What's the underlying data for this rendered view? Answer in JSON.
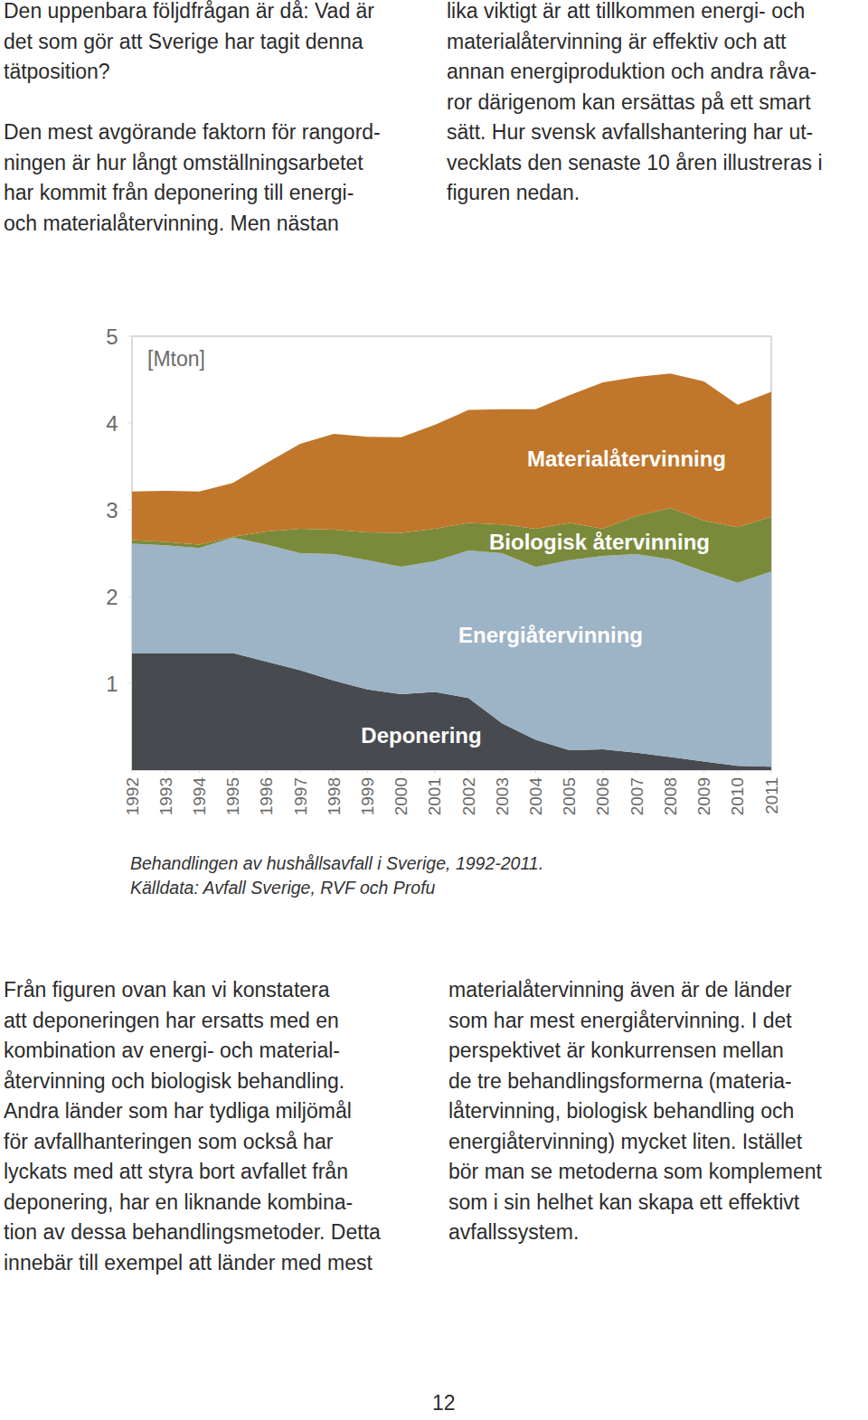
{
  "document": {
    "top_left": [
      [
        "Den uppenbara följdfrågan är då: Vad är",
        "det som gör att Sverige har tagit denna",
        "tätposition?"
      ],
      [
        "Den mest avgörande faktorn för rangord-",
        "ningen är hur långt omställningsarbetet",
        "har kommit från deponering till energi-",
        "och materialåtervinning. Men nästan"
      ]
    ],
    "top_right": [
      [
        "lika viktigt är att tillkommen energi- och",
        "materialåtervinning är effektiv och att",
        "annan energiproduktion och andra råva-",
        "ror därigenom kan ersättas på ett smart",
        "sätt. Hur svensk avfallshantering har ut-",
        "vecklats den senaste 10 åren illustreras i",
        "figuren nedan."
      ]
    ],
    "caption": [
      "Behandlingen av hushållsavfall i Sverige, 1992-2011.",
      "Källdata: Avfall Sverige, RVF och Profu"
    ],
    "bottom_left": [
      [
        "Från figuren ovan kan vi konstatera",
        "att deponeringen har ersatts med en",
        "kombination av energi- och material-",
        "återvinning och biologisk behandling.",
        "Andra länder som har tydliga miljömål",
        "för avfallhanteringen som också har",
        "lyckats med att styra bort avfallet från",
        "deponering, har en liknande kombina-",
        "tion av dessa behandlingsmetoder. Detta",
        "innebär till exempel att länder med mest"
      ]
    ],
    "bottom_right": [
      [
        "materialåtervinning även är de länder",
        "som har mest energiåtervinning. I det",
        "perspektivet är konkurrensen mellan",
        "de tre behandlingsformerna (materia-",
        "låtervinning, biologisk behandling och",
        "energiåtervinning) mycket liten. Istället",
        "bör man se metoderna som komplement",
        "som i sin helhet kan skapa ett effektivt",
        "avfallssystem."
      ]
    ],
    "page_number": "12"
  },
  "chart_data": {
    "type": "area",
    "stacked": true,
    "y_label": "[Mton]",
    "x": [
      1992,
      1993,
      1994,
      1995,
      1996,
      1997,
      1998,
      1999,
      2000,
      2001,
      2002,
      2003,
      2004,
      2005,
      2006,
      2007,
      2008,
      2009,
      2010,
      2011
    ],
    "xlim": [
      1992,
      2011
    ],
    "xticks": [
      1992,
      1993,
      1994,
      1995,
      1996,
      1997,
      1998,
      1999,
      2000,
      2001,
      2002,
      2003,
      2004,
      2005,
      2006,
      2007,
      2008,
      2009,
      2010,
      2011
    ],
    "ylim": [
      0,
      5
    ],
    "yticks": [
      1,
      2,
      3,
      4,
      5
    ],
    "series": [
      {
        "name": "Deponering",
        "color": "#474b50",
        "values": [
          1.35,
          1.35,
          1.35,
          1.35,
          1.25,
          1.15,
          1.03,
          0.93,
          0.875,
          0.9,
          0.83,
          0.54,
          0.35,
          0.23,
          0.24,
          0.2,
          0.15,
          0.1,
          0.05,
          0.04
        ]
      },
      {
        "name": "Energiåtervinning",
        "color": "#9db3c6",
        "values": [
          1.26,
          1.24,
          1.21,
          1.33,
          1.35,
          1.35,
          1.46,
          1.49,
          1.47,
          1.51,
          1.7,
          1.96,
          1.99,
          2.19,
          2.23,
          2.29,
          2.28,
          2.19,
          2.11,
          2.25
        ]
      },
      {
        "name": "Biologisk återvinning",
        "color": "#7a8a3b",
        "values": [
          0.04,
          0.04,
          0.04,
          0.01,
          0.15,
          0.28,
          0.28,
          0.32,
          0.39,
          0.37,
          0.32,
          0.33,
          0.44,
          0.43,
          0.31,
          0.44,
          0.59,
          0.585,
          0.64,
          0.63
        ]
      },
      {
        "name": "Materialåtervinning",
        "color": "#c0772b",
        "values": [
          0.56,
          0.59,
          0.61,
          0.62,
          0.79,
          0.98,
          1.105,
          1.1,
          1.1,
          1.2,
          1.3,
          1.33,
          1.38,
          1.47,
          1.69,
          1.6,
          1.55,
          1.605,
          1.41,
          1.44
        ]
      }
    ]
  }
}
